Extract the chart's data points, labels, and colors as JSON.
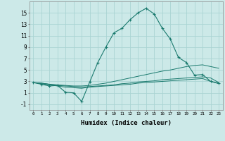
{
  "xlabel": "Humidex (Indice chaleur)",
  "background_color": "#cce9e8",
  "grid_color": "#aad4d3",
  "line_color": "#1a7a6e",
  "xlim": [
    -0.5,
    23.5
  ],
  "ylim": [
    -2,
    17
  ],
  "xticks": [
    0,
    1,
    2,
    3,
    4,
    5,
    6,
    7,
    8,
    9,
    10,
    11,
    12,
    13,
    14,
    15,
    16,
    17,
    18,
    19,
    20,
    21,
    22,
    23
  ],
  "yticks": [
    -1,
    1,
    3,
    5,
    7,
    9,
    11,
    13,
    15
  ],
  "series1_x": [
    0,
    1,
    2,
    3,
    4,
    5,
    6,
    7,
    8,
    9,
    10,
    11,
    12,
    13,
    14,
    15,
    16,
    17,
    18,
    19,
    20,
    21,
    22,
    23
  ],
  "series1_y": [
    2.8,
    2.5,
    2.2,
    2.3,
    1.1,
    1.0,
    -0.5,
    2.9,
    6.3,
    9.0,
    11.5,
    12.3,
    13.8,
    15.0,
    15.8,
    14.8,
    12.3,
    10.4,
    7.2,
    6.3,
    4.1,
    4.2,
    3.0,
    2.7
  ],
  "series2_x": [
    0,
    1,
    2,
    3,
    4,
    5,
    6,
    7,
    8,
    9,
    10,
    11,
    12,
    13,
    14,
    15,
    16,
    17,
    18,
    19,
    20,
    21,
    22,
    23
  ],
  "series2_y": [
    2.8,
    2.7,
    2.5,
    2.4,
    2.3,
    2.2,
    2.2,
    2.3,
    2.5,
    2.7,
    3.0,
    3.3,
    3.6,
    3.9,
    4.2,
    4.5,
    4.8,
    5.0,
    5.3,
    5.6,
    5.8,
    5.9,
    5.6,
    5.3
  ],
  "series3_x": [
    0,
    1,
    2,
    3,
    4,
    5,
    6,
    7,
    8,
    9,
    10,
    11,
    12,
    13,
    14,
    15,
    16,
    17,
    18,
    19,
    20,
    21,
    22,
    23
  ],
  "series3_y": [
    2.8,
    2.7,
    2.5,
    2.3,
    2.2,
    2.1,
    2.0,
    2.1,
    2.2,
    2.3,
    2.4,
    2.6,
    2.7,
    2.9,
    3.0,
    3.1,
    3.3,
    3.4,
    3.5,
    3.6,
    3.7,
    3.8,
    3.6,
    2.8
  ],
  "series4_x": [
    0,
    1,
    2,
    3,
    4,
    5,
    6,
    7,
    8,
    9,
    10,
    11,
    12,
    13,
    14,
    15,
    16,
    17,
    18,
    19,
    20,
    21,
    22,
    23
  ],
  "series4_y": [
    2.8,
    2.6,
    2.4,
    2.2,
    2.0,
    1.9,
    1.8,
    2.0,
    2.1,
    2.2,
    2.3,
    2.4,
    2.5,
    2.7,
    2.8,
    2.9,
    3.0,
    3.1,
    3.2,
    3.3,
    3.4,
    3.5,
    3.0,
    2.6
  ]
}
